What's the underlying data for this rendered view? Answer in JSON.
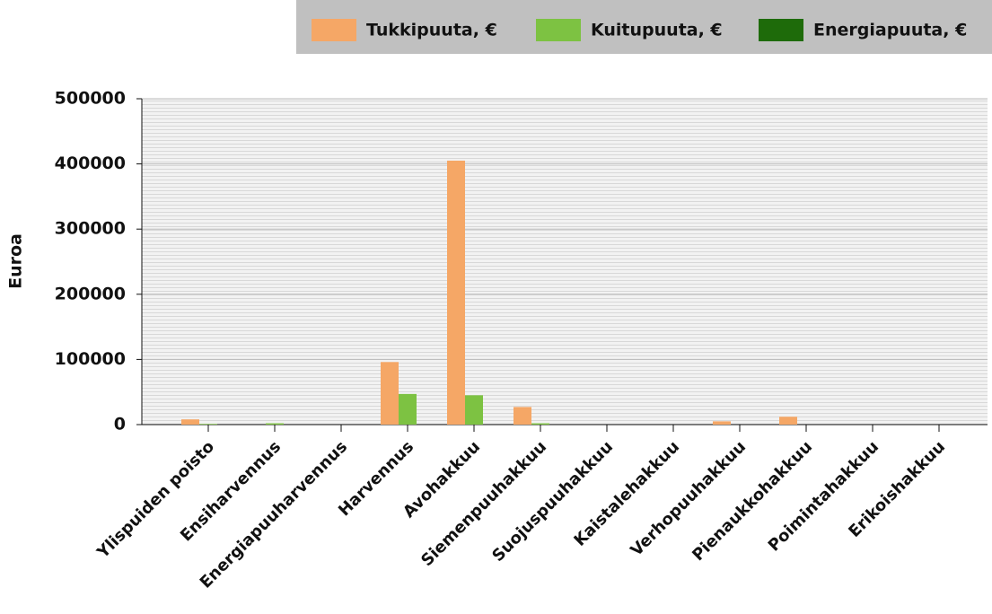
{
  "chart_data": {
    "type": "bar",
    "y_label": "Euroa",
    "categories": [
      "Ylispuiden poisto",
      "Ensiharvennus",
      "Energiapuuharvennus",
      "Harvennus",
      "Avohakkuu",
      "Siemenpuuhakkuu",
      "Suojuspuuhakkuu",
      "Kaistalehakkuu",
      "Verhopuuhakkuu",
      "Pienaukkohakkuu",
      "Poimintahakkuu",
      "Erikoishakkuu"
    ],
    "series": [
      {
        "name": "Tukkipuuta, €",
        "color": "#f5a766",
        "values": [
          8000,
          0,
          0,
          96000,
          405000,
          27000,
          0,
          0,
          5000,
          12000,
          0,
          0
        ]
      },
      {
        "name": "Kuitupuuta, €",
        "color": "#7dc242",
        "values": [
          1000,
          2000,
          0,
          47000,
          45000,
          2000,
          0,
          0,
          0,
          0,
          0,
          0
        ]
      },
      {
        "name": "Energiapuuta, €",
        "color": "#1e6b0a",
        "values": [
          0,
          0,
          0,
          0,
          0,
          0,
          0,
          0,
          0,
          0,
          0,
          0
        ]
      }
    ],
    "ylim": [
      0,
      500000
    ],
    "yticks": [
      0,
      100000,
      200000,
      300000,
      400000,
      500000
    ],
    "grid": true,
    "legend": "top-right"
  }
}
